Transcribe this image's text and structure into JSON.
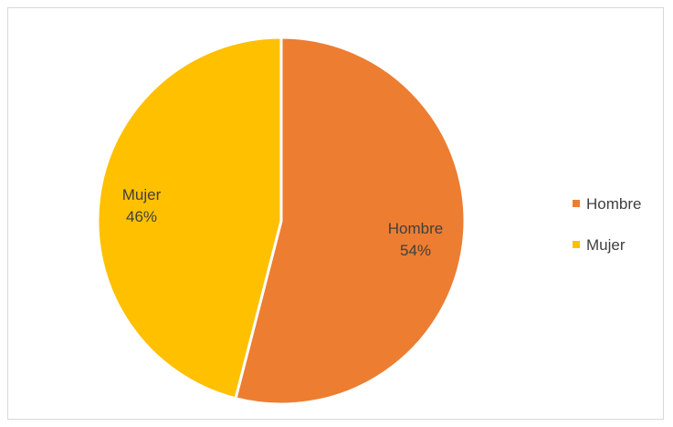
{
  "chart_data": {
    "type": "pie",
    "categories": [
      "Hombre",
      "Mujer"
    ],
    "values": [
      54,
      46
    ],
    "colors": [
      "#ed7d31",
      "#ffc000"
    ],
    "data_labels": [
      {
        "category": "Hombre",
        "percent": "54%"
      },
      {
        "category": "Mujer",
        "percent": "46%"
      }
    ],
    "legend": {
      "placement": "right",
      "entries": [
        "Hombre",
        "Mujer"
      ]
    },
    "start_angle": "12 o'clock",
    "direction": "clockwise"
  }
}
